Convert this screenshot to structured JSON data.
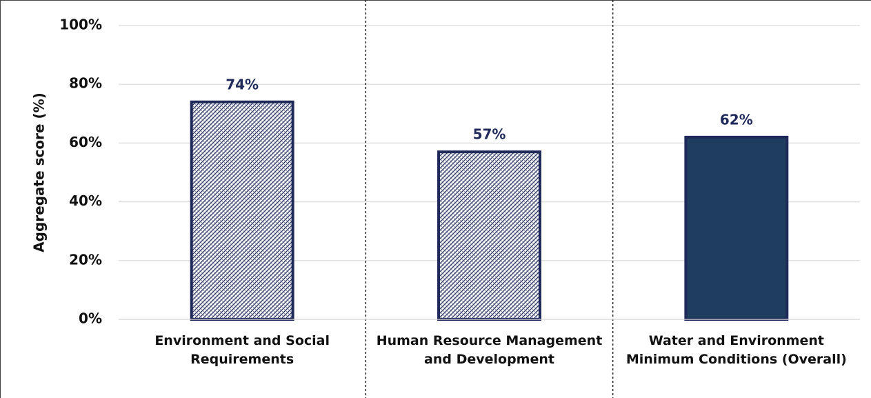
{
  "chart_data": {
    "type": "bar",
    "y_label": "Aggregate score (%)",
    "categories": [
      "Environment and Social Requirements",
      "Human Resource Management and Development",
      "Water and Environment Minimum Conditions (Overall)"
    ],
    "values": [
      74,
      57,
      62
    ],
    "value_labels": [
      "74%",
      "57%",
      "62%"
    ],
    "fills": [
      "hatch",
      "hatch",
      "solid"
    ],
    "color": "#1f3d5e",
    "edge_color": "#1f2a5a",
    "ylim": [
      0,
      100
    ],
    "yticks": [
      {
        "value": 0,
        "label": "0%"
      },
      {
        "value": 20,
        "label": "20%"
      },
      {
        "value": 40,
        "label": "40%"
      },
      {
        "value": 60,
        "label": "60%"
      },
      {
        "value": 80,
        "label": "80%"
      },
      {
        "value": 100,
        "label": "100%"
      }
    ],
    "grid": true,
    "category_separators": true
  }
}
